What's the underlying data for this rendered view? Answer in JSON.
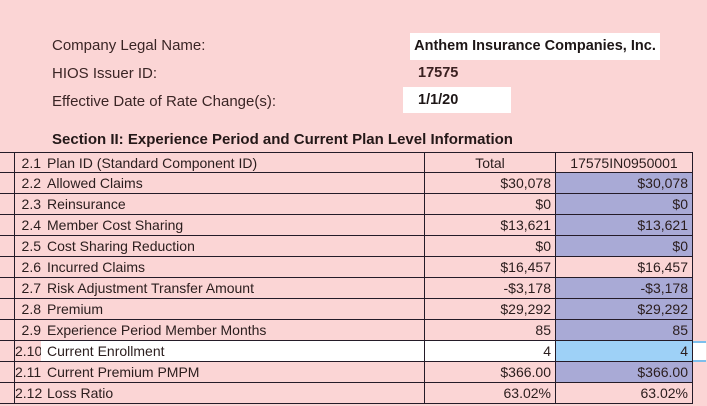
{
  "form": {
    "fields": [
      {
        "label": "Company Legal Name:",
        "value": "Anthem Insurance Companies, Inc."
      },
      {
        "label": "HIOS Issuer ID:",
        "value": "17575"
      },
      {
        "label": "Effective Date of Rate Change(s):",
        "value": "1/1/20"
      }
    ]
  },
  "section": {
    "title": "Section II: Experience Period and Current Plan Level Information"
  },
  "table": {
    "rows": [
      {
        "num": "2.1",
        "label": "Plan ID (Standard Component ID)",
        "total": "Total",
        "plan": "17575IN0950001",
        "plan_fill": "pink",
        "row_style": "header"
      },
      {
        "num": "2.2",
        "label": "Allowed Claims",
        "total": "$30,078",
        "plan": "$30,078",
        "plan_fill": "purple",
        "row_style": "normal"
      },
      {
        "num": "2.3",
        "label": "Reinsurance",
        "total": "$0",
        "plan": "$0",
        "plan_fill": "purple",
        "row_style": "normal"
      },
      {
        "num": "2.4",
        "label": "Member Cost Sharing",
        "total": "$13,621",
        "plan": "$13,621",
        "plan_fill": "purple",
        "row_style": "normal"
      },
      {
        "num": "2.5",
        "label": "Cost Sharing Reduction",
        "total": "$0",
        "plan": "$0",
        "plan_fill": "purple",
        "row_style": "normal"
      },
      {
        "num": "2.6",
        "label": "Incurred Claims",
        "total": "$16,457",
        "plan": "$16,457",
        "plan_fill": "pink",
        "row_style": "normal"
      },
      {
        "num": "2.7",
        "label": "Risk Adjustment Transfer Amount",
        "total": "-$3,178",
        "plan": "-$3,178",
        "plan_fill": "purple",
        "row_style": "normal"
      },
      {
        "num": "2.8",
        "label": "Premium",
        "total": "$29,292",
        "plan": "$29,292",
        "plan_fill": "purple",
        "row_style": "normal"
      },
      {
        "num": "2.9",
        "label": "Experience Period Member Months",
        "total": "85",
        "plan": "85",
        "plan_fill": "purple",
        "row_style": "normal"
      },
      {
        "num": "2.10",
        "label": "Current Enrollment",
        "total": "4",
        "plan": "4",
        "plan_fill": "blue",
        "row_style": "selected"
      },
      {
        "num": "2.11",
        "label": "Current Premium PMPM",
        "total": "$366.00",
        "plan": "$366.00",
        "plan_fill": "purple",
        "row_style": "normal"
      },
      {
        "num": "2.12",
        "label": "Loss Ratio",
        "total": "63.02%",
        "plan": "63.02%",
        "plan_fill": "pink",
        "row_style": "normal"
      }
    ]
  },
  "colors": {
    "page_background": "#fbd5d5",
    "input_cell_purple": "#a9aad6",
    "selected_cell_blue": "#9ed1f7",
    "selection_gridline_blue": "#7cbfec",
    "table_border": "#241b28",
    "entry_box_white": "#ffffff"
  }
}
